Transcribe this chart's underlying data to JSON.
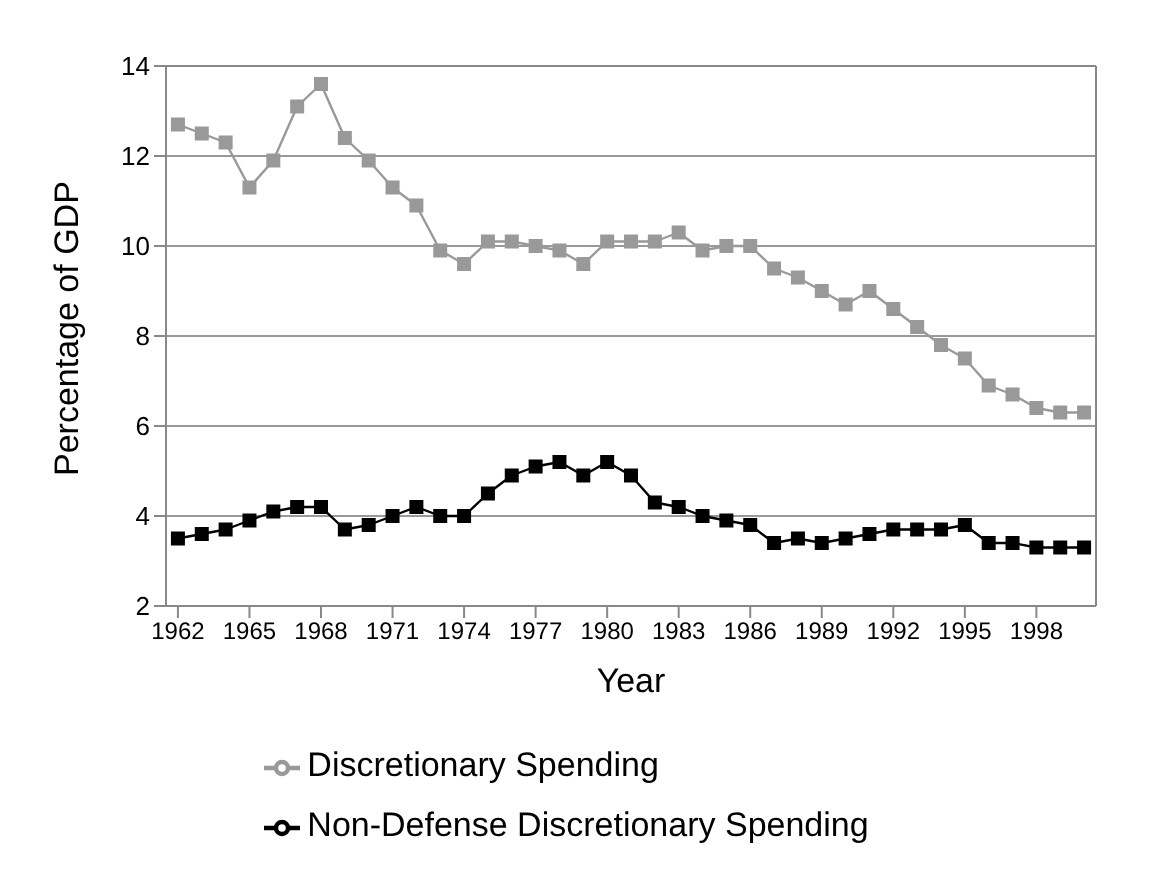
{
  "chart_data": {
    "type": "line",
    "xlabel": "Year",
    "ylabel": "Percentage of GDP",
    "x": [
      1962,
      1963,
      1964,
      1965,
      1966,
      1967,
      1968,
      1969,
      1970,
      1971,
      1972,
      1973,
      1974,
      1975,
      1976,
      1977,
      1978,
      1979,
      1980,
      1981,
      1982,
      1983,
      1984,
      1985,
      1986,
      1987,
      1988,
      1989,
      1990,
      1991,
      1992,
      1993,
      1994,
      1995,
      1996,
      1997,
      1998,
      1999,
      2000
    ],
    "series": [
      {
        "name": "Discretionary Spending",
        "color": "#999999",
        "values": [
          12.7,
          12.5,
          12.3,
          11.3,
          11.9,
          13.1,
          13.6,
          12.4,
          11.9,
          11.3,
          10.9,
          9.9,
          9.6,
          10.1,
          10.1,
          10.0,
          9.9,
          9.6,
          10.1,
          10.1,
          10.1,
          10.3,
          9.9,
          10.0,
          10.0,
          9.5,
          9.3,
          9.0,
          8.7,
          9.0,
          8.6,
          8.2,
          7.8,
          7.5,
          6.9,
          6.7,
          6.4,
          6.3,
          6.3
        ]
      },
      {
        "name": "Non-Defense Discretionary Spending",
        "color": "#000000",
        "values": [
          3.5,
          3.6,
          3.7,
          3.9,
          4.1,
          4.2,
          4.2,
          3.7,
          3.8,
          4.0,
          4.2,
          4.0,
          4.0,
          4.5,
          4.9,
          5.1,
          5.2,
          4.9,
          5.2,
          4.9,
          4.3,
          4.2,
          4.0,
          3.9,
          3.8,
          3.4,
          3.5,
          3.4,
          3.5,
          3.6,
          3.7,
          3.7,
          3.7,
          3.8,
          3.4,
          3.4,
          3.3,
          3.3,
          3.3
        ]
      }
    ],
    "xlim": [
      1961.5,
      2000.5
    ],
    "xticks": [
      1962,
      1965,
      1968,
      1971,
      1974,
      1977,
      1980,
      1983,
      1986,
      1989,
      1992,
      1995,
      1998
    ],
    "ylim": [
      2,
      14
    ],
    "yticks": [
      2,
      4,
      6,
      8,
      10,
      12,
      14
    ],
    "grid": "y",
    "legend": "bottom",
    "marker": "square",
    "line_style": "solid"
  }
}
